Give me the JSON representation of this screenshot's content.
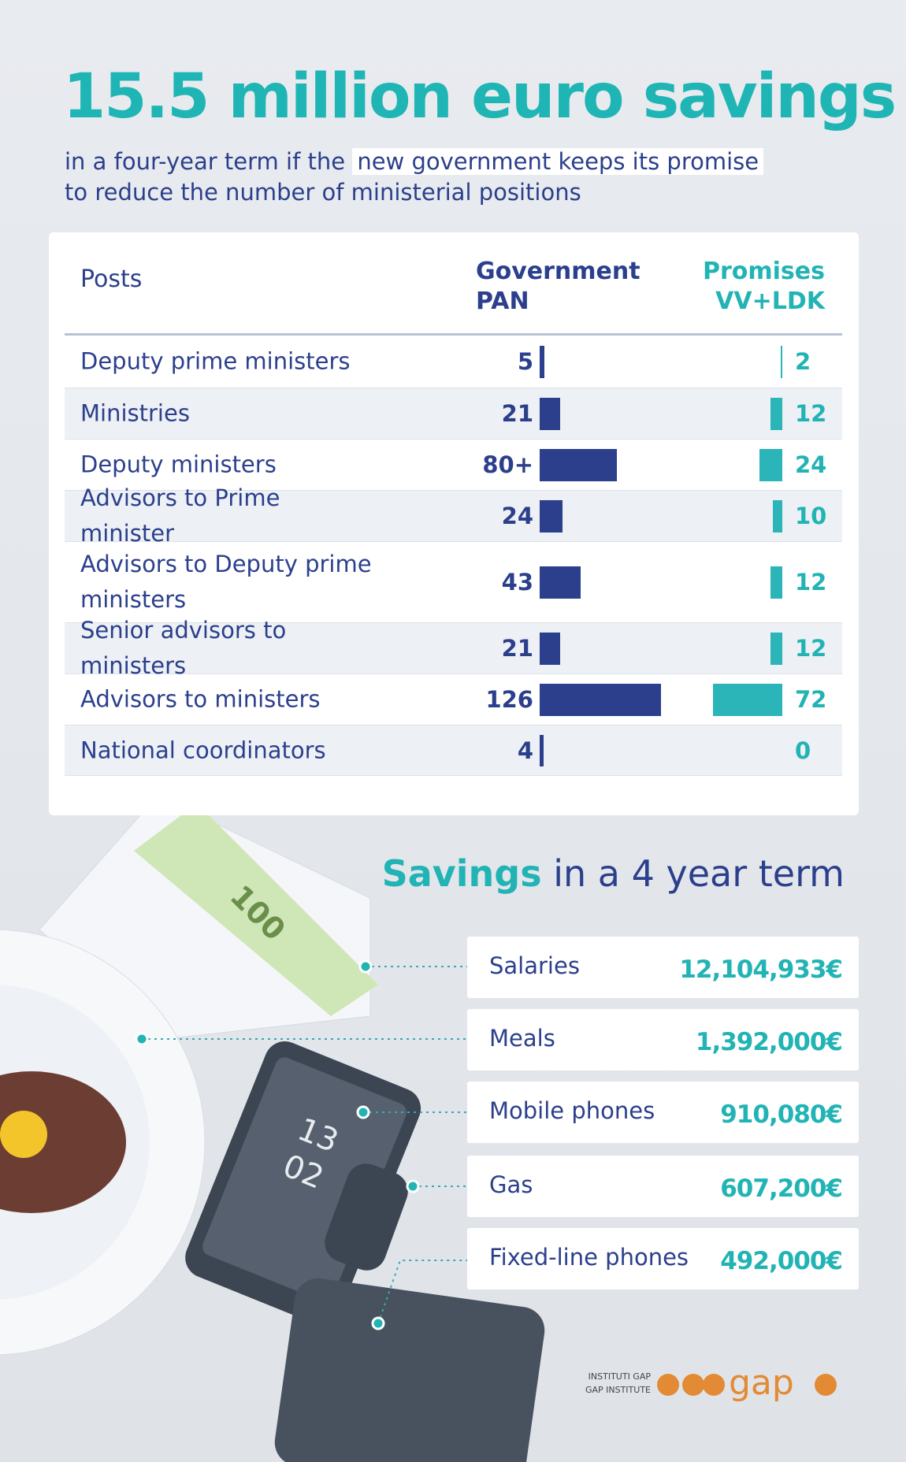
{
  "header": {
    "title": "15.5 million euro savings",
    "subtitle_before": "in a four-year term if the",
    "subtitle_highlight": "new government keeps its promise",
    "subtitle_after": "to reduce the number of ministerial positions"
  },
  "table": {
    "columns": [
      "Posts",
      "Government\nPAN",
      "Promises\nVV+LDK"
    ],
    "rows": [
      [
        "Deputy prime ministers",
        5,
        2
      ],
      [
        "Ministries",
        21,
        12
      ],
      [
        "Deputy ministers",
        {
          "value": 80,
          "label": "80+"
        },
        24
      ],
      [
        "Advisors to Prime minister",
        24,
        10
      ],
      [
        "Advisors to Deputy prime ministers",
        43,
        12
      ],
      [
        "Senior advisors to ministers",
        21,
        12
      ],
      [
        "Advisors to ministers",
        126,
        72
      ],
      [
        "National coordinators",
        4,
        0
      ]
    ]
  },
  "savings": {
    "title_bold": "Savings",
    "title_rest": "in a 4 year term",
    "items": [
      {
        "label": "Salaries",
        "value": "12,104,933€"
      },
      {
        "label": "Meals",
        "value": "1,392,000€"
      },
      {
        "label": "Mobile phones",
        "value": "910,080€"
      },
      {
        "label": "Gas",
        "value": "607,200€"
      },
      {
        "label": "Fixed-line phones",
        "value": "492,000€"
      }
    ]
  },
  "illustration": {
    "banknote": "100",
    "phone_hour": "13",
    "phone_minute": "02"
  },
  "logo": {
    "line1": "INSTITUTI GAP",
    "line2": "GAP INSTITUTE",
    "name": "gap"
  }
}
